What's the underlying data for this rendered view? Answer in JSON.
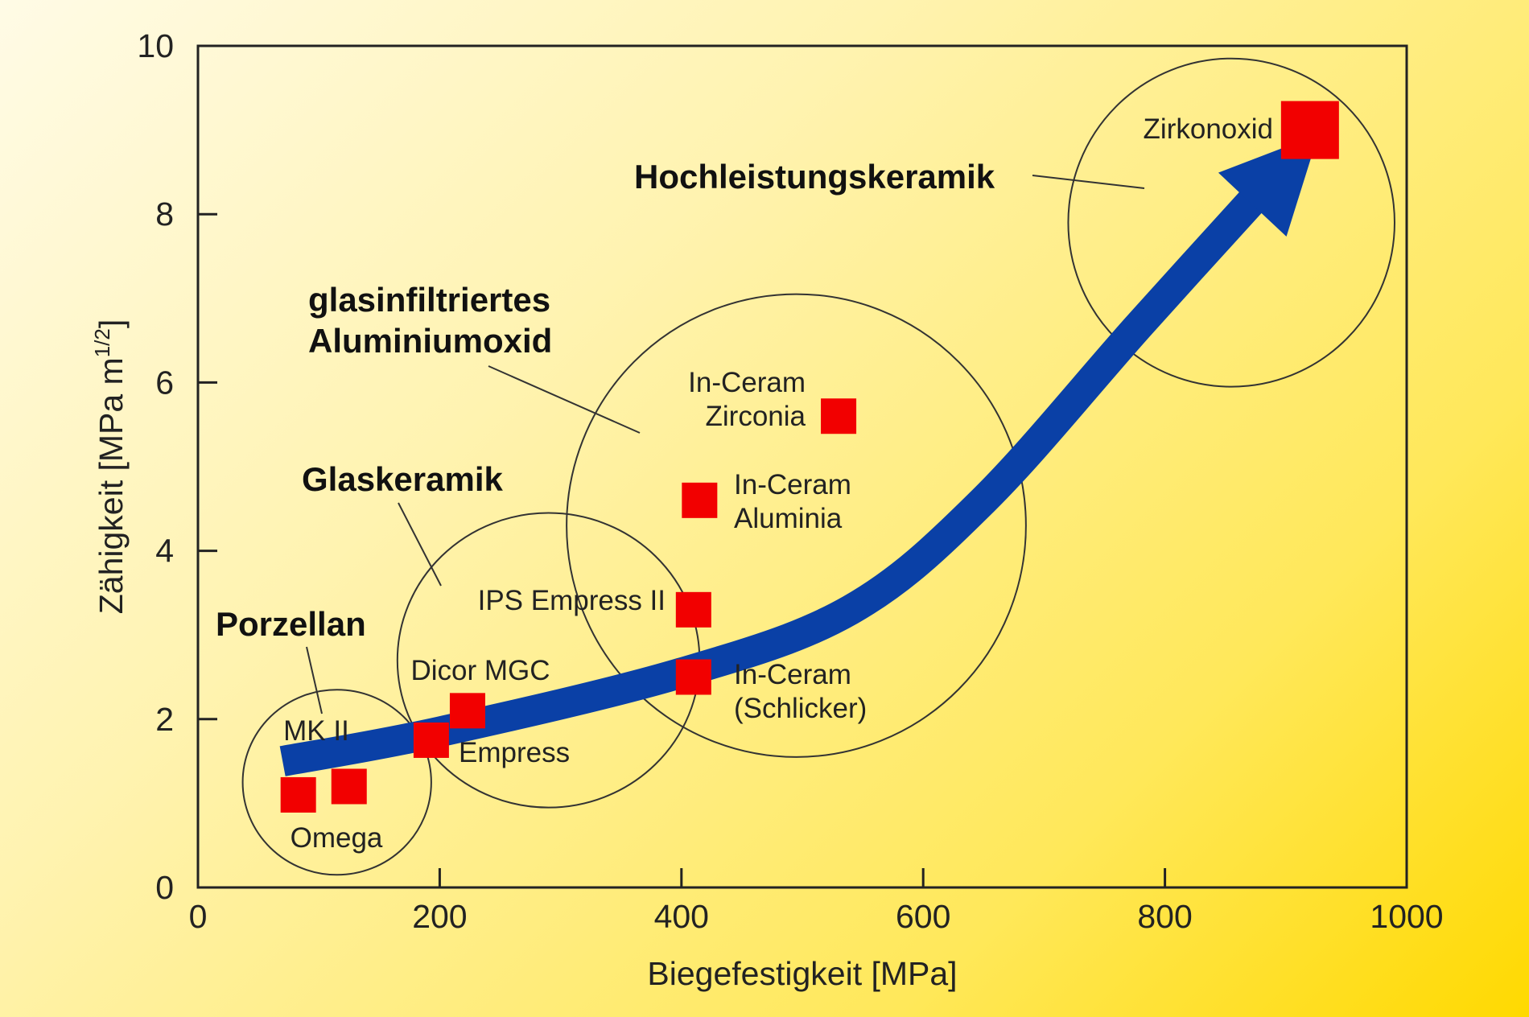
{
  "chart_data": {
    "type": "scatter",
    "title": "",
    "xlabel": "Biegefestigkeit [MPa]",
    "ylabel": "Zähigkeit [MPa m",
    "ylabel_sup": "1/2",
    "ylabel_close": "]",
    "xlim": [
      0,
      1000
    ],
    "ylim": [
      0,
      10
    ],
    "xticks": [
      "0",
      "200",
      "400",
      "600",
      "800",
      "1000"
    ],
    "yticks": [
      "0",
      "2",
      "4",
      "6",
      "8",
      "10"
    ],
    "grid": false,
    "points": [
      {
        "x": 83,
        "y": 1.1,
        "label": "Omega",
        "label_pos": "below"
      },
      {
        "x": 125,
        "y": 1.2,
        "label": "",
        "label_pos": ""
      },
      {
        "x": 193,
        "y": 1.75,
        "label": "Empress",
        "label_pos": "below-right"
      },
      {
        "x": 223,
        "y": 2.1,
        "label": "Dicor MGC",
        "label_pos": "above"
      },
      {
        "x": 410,
        "y": 2.5,
        "label": "In-Ceram (Schlicker)",
        "label_pos": "right"
      },
      {
        "x": 410,
        "y": 3.3,
        "label": "IPS Empress II",
        "label_pos": "left"
      },
      {
        "x": 415,
        "y": 4.6,
        "label": "In-Ceram Aluminia",
        "label_pos": "right"
      },
      {
        "x": 530,
        "y": 5.6,
        "label": "In-Ceram Zirconia",
        "label_pos": "left"
      },
      {
        "x": 920,
        "y": 9.0,
        "label": "Zirkonoxid",
        "label_pos": "left"
      }
    ],
    "point_labels_extra": [
      "MK II"
    ],
    "groups": [
      {
        "label": "Porzellan",
        "cx": 115,
        "cy": 1.25,
        "rx": 78,
        "ry": 1.1
      },
      {
        "label": "Glaskeramik",
        "cx": 290,
        "cy": 2.7,
        "rx": 125,
        "ry": 1.75
      },
      {
        "label_lines": [
          "glasinfiltriertes",
          "Aluminiumoxid"
        ],
        "cx": 495,
        "cy": 4.3,
        "rx": 190,
        "ry": 2.75
      },
      {
        "label": "Hochleistungskeramik",
        "cx": 855,
        "cy": 7.9,
        "rx": 135,
        "ry": 1.95
      }
    ],
    "trend_arrow": {
      "x": [
        70,
        200,
        400,
        540,
        650,
        780,
        900
      ],
      "y": [
        1.5,
        1.85,
        2.55,
        3.3,
        4.6,
        6.7,
        8.6
      ]
    },
    "colors": {
      "point": "#f20000",
      "arrow": "#0a40a6",
      "axis": "#222222",
      "background": "#fff2a8"
    }
  }
}
